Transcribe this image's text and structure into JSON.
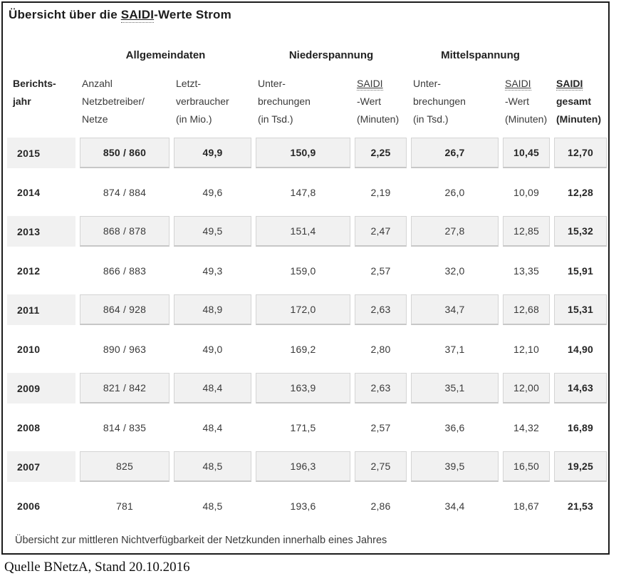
{
  "chart_data": {
    "type": "table",
    "title": "Übersicht über die SAIDI-Werte Strom",
    "title_parts": {
      "prefix": "Übersicht über die ",
      "abbr": "SAIDI",
      "suffix": "-Werte Strom"
    },
    "group_headers": [
      "Allgemeindaten",
      "Niederspannung",
      "Mittelspannung"
    ],
    "columns": [
      {
        "lines": [
          "Berichts-",
          "jahr"
        ],
        "bold": true
      },
      {
        "lines": [
          "Anzahl",
          "Netzbetreiber/",
          "Netze"
        ]
      },
      {
        "lines": [
          "Letzt-",
          "verbraucher",
          "(in Mio.)"
        ]
      },
      {
        "lines": [
          "Unter-",
          "brechungen",
          "(in Tsd.)"
        ]
      },
      {
        "lines": [
          "SAIDI",
          "-Wert",
          "(Minuten)"
        ],
        "underline_first": true
      },
      {
        "lines": [
          "Unter-",
          "brechungen",
          "(in Tsd.)"
        ]
      },
      {
        "lines": [
          "SAIDI",
          "-Wert",
          "(Minuten)"
        ],
        "underline_first": true
      },
      {
        "lines": [
          "SAIDI",
          "gesamt",
          "(Minuten)"
        ],
        "underline_first": true,
        "bold": true
      }
    ],
    "rows": [
      {
        "year": "2015",
        "values": [
          "850 / 860",
          "49,9",
          "150,9",
          "2,25",
          "26,7",
          "10,45",
          "12,70"
        ]
      },
      {
        "year": "2014",
        "values": [
          "874 / 884",
          "49,6",
          "147,8",
          "2,19",
          "26,0",
          "10,09",
          "12,28"
        ]
      },
      {
        "year": "2013",
        "values": [
          "868 / 878",
          "49,5",
          "151,4",
          "2,47",
          "27,8",
          "12,85",
          "15,32"
        ]
      },
      {
        "year": "2012",
        "values": [
          "866 / 883",
          "49,3",
          "159,0",
          "2,57",
          "32,0",
          "13,35",
          "15,91"
        ]
      },
      {
        "year": "2011",
        "values": [
          "864 / 928",
          "48,9",
          "172,0",
          "2,63",
          "34,7",
          "12,68",
          "15,31"
        ]
      },
      {
        "year": "2010",
        "values": [
          "890 / 963",
          "49,0",
          "169,2",
          "2,80",
          "37,1",
          "12,10",
          "14,90"
        ]
      },
      {
        "year": "2009",
        "values": [
          "821 / 842",
          "48,4",
          "163,9",
          "2,63",
          "35,1",
          "12,00",
          "14,63"
        ]
      },
      {
        "year": "2008",
        "values": [
          "814 / 835",
          "48,4",
          "171,5",
          "2,57",
          "36,6",
          "14,32",
          "16,89"
        ]
      },
      {
        "year": "2007",
        "values": [
          "825",
          "48,5",
          "196,3",
          "2,75",
          "39,5",
          "16,50",
          "19,25"
        ]
      },
      {
        "year": "2006",
        "values": [
          "781",
          "48,5",
          "193,6",
          "2,86",
          "34,4",
          "18,67",
          "21,53"
        ]
      }
    ],
    "footnote": "Übersicht zur mittleren Nichtverfügbarkeit der Netzkunden innerhalb eines Jahres"
  },
  "caption": "Quelle BNetzA, Stand 20.10.2016",
  "colors": {
    "shaded_bg": "#f1f1f1",
    "cell_border": "#d4d4d4",
    "outer_border": "#1c1c1c",
    "text": "#3a3a3a"
  }
}
